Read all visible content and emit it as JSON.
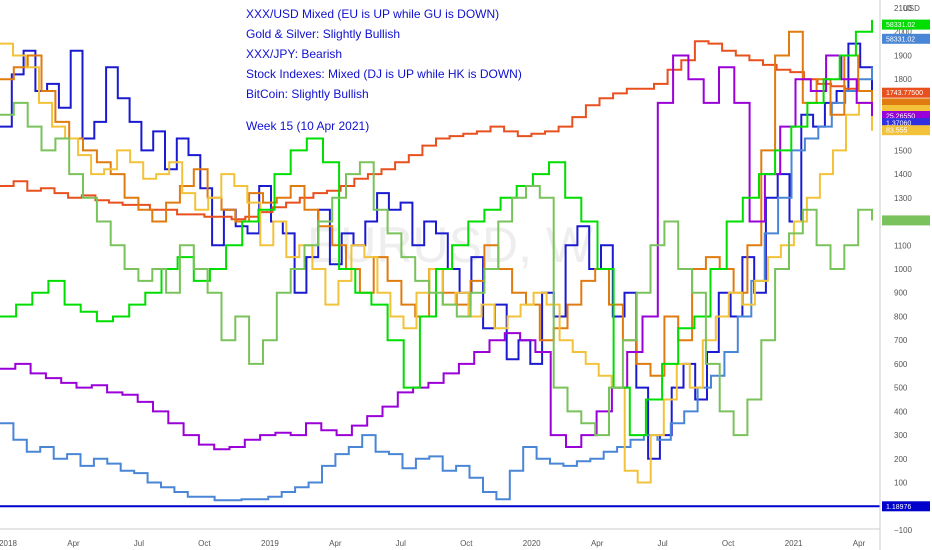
{
  "chart_data": {
    "type": "line",
    "annotations": [
      "XXX/USD Mixed (EU is UP while GU is DOWN)",
      "Gold & Silver: Slightly Bullish",
      "XXX/JPY: Bearish",
      "Stock Indexes:  Mixed (DJ is UP while HK is DOWN)",
      "BitCoin: Slightly Bullish",
      "Week 15 (10 Apr 2021)"
    ],
    "currency_label": "USD",
    "watermark": "EURUSD, W",
    "x_ticks": [
      "2018",
      "Apr",
      "Jul",
      "Oct",
      "2019",
      "Apr",
      "Jul",
      "Oct",
      "2020",
      "Apr",
      "Jul",
      "Oct",
      "2021",
      "Apr"
    ],
    "y_ticks": [
      "2100",
      "2000",
      "1900",
      "1800",
      "1700",
      "1600",
      "1500",
      "1400",
      "1300",
      "1200",
      "1100",
      "1000",
      "900",
      "800",
      "700",
      "600",
      "500",
      "400",
      "300",
      "200",
      "100",
      "0",
      "−100"
    ],
    "ylim": [
      -100,
      2100
    ],
    "grid": false,
    "price_badges": [
      {
        "label": "58331.02",
        "color": "#00dd00",
        "value": 2030
      },
      {
        "label": "58331.02",
        "color": "#4a86d6",
        "value": 1970
      },
      {
        "label": "1743.77500",
        "color": "#e8501e",
        "value": 1743
      },
      {
        "label": "",
        "color": "#e07b10",
        "value": 1698
      },
      {
        "label": "",
        "color": "#f2c33a",
        "value": 1670
      },
      {
        "label": "25.26550",
        "color": "#9a00d8",
        "value": 1645
      },
      {
        "label": "1.37060",
        "color": "#3030e0",
        "value": 1615
      },
      {
        "label": "83.555",
        "color": "#f2c33a",
        "value": 1585
      },
      {
        "label": "",
        "color": "#7ac25b",
        "value": 1205
      },
      {
        "label": "1.18976",
        "color": "#0000cc",
        "value": 0
      }
    ],
    "series": [
      {
        "color": "#1a1ad0",
        "values": [
          1600,
          1820,
          1920,
          1750,
          1780,
          1680,
          1920,
          1550,
          1620,
          1850,
          1720,
          1620,
          1500,
          1580,
          1420,
          1550,
          1480,
          1340,
          1100,
          1250,
          1180,
          1150,
          1350,
          1200,
          1150,
          900,
          1050,
          1250,
          1020,
          1150,
          1100,
          1200,
          1320,
          1250,
          1280,
          1100,
          1200,
          1150,
          1000,
          900,
          1050,
          750,
          850,
          620,
          700,
          600,
          900,
          800,
          1100,
          1180,
          1000,
          1100,
          800,
          900,
          500,
          200,
          300,
          500,
          600,
          450,
          650,
          900,
          800,
          1050,
          900,
          1300,
          1400,
          1200,
          1650,
          1600,
          1700,
          1750,
          1950,
          1850,
          1700
        ]
      },
      {
        "color": "#4a86d6",
        "values": [
          350,
          280,
          230,
          250,
          200,
          220,
          170,
          200,
          180,
          150,
          140,
          100,
          80,
          60,
          40,
          40,
          25,
          25,
          30,
          30,
          40,
          60,
          80,
          100,
          170,
          220,
          250,
          300,
          230,
          220,
          160,
          200,
          210,
          150,
          170,
          120,
          60,
          30,
          150,
          250,
          200,
          180,
          170,
          190,
          200,
          230,
          250,
          280,
          300,
          280,
          350,
          400,
          500,
          550,
          650,
          800,
          950,
          1150,
          1300,
          1500,
          1550,
          1600,
          1700,
          1750,
          1800,
          1850
        ]
      },
      {
        "color": "#e8501e",
        "values": [
          1350,
          1370,
          1330,
          1340,
          1320,
          1300,
          1310,
          1290,
          1280,
          1270,
          1270,
          1250,
          1250,
          1230,
          1230,
          1220,
          1220,
          1210,
          1220,
          1240,
          1260,
          1280,
          1300,
          1320,
          1330,
          1350,
          1380,
          1400,
          1420,
          1450,
          1480,
          1520,
          1550,
          1560,
          1570,
          1580,
          1600,
          1580,
          1560,
          1570,
          1580,
          1600,
          1640,
          1690,
          1720,
          1740,
          1760,
          1760,
          1780,
          1840,
          1880,
          1960,
          1950,
          1920,
          1900,
          1880,
          1860,
          1840,
          1830,
          1800,
          1780,
          1770,
          1760,
          1750,
          1743
        ]
      },
      {
        "color": "#e07b10",
        "values": [
          1800,
          1850,
          1900,
          1750,
          1620,
          1550,
          1500,
          1450,
          1400,
          1300,
          1250,
          1200,
          1280,
          1350,
          1420,
          1300,
          1250,
          1200,
          1320,
          1280,
          1300,
          1350,
          1250,
          1180,
          1100,
          1000,
          900,
          1050,
          950,
          850,
          800,
          1000,
          900,
          850,
          950,
          1100,
          1000,
          900,
          850,
          700,
          750,
          850,
          950,
          1000,
          850,
          700,
          600,
          550,
          800,
          700,
          1000,
          1050,
          1000,
          900,
          1100,
          1500,
          1900,
          2000,
          1700,
          1800,
          1650,
          1900,
          1750,
          1700
        ]
      },
      {
        "color": "#f2c33a",
        "values": [
          1950,
          1900,
          1850,
          1700,
          1600,
          1550,
          1480,
          1400,
          1420,
          1500,
          1450,
          1380,
          1400,
          1450,
          1320,
          1250,
          1300,
          1400,
          1350,
          1280,
          1100,
          1200,
          1050,
          1100,
          1000,
          850,
          950,
          1100,
          1050,
          900,
          800,
          750,
          900,
          1000,
          850,
          900,
          800,
          850,
          750,
          800,
          850,
          900,
          850,
          700,
          650,
          600,
          550,
          500,
          150,
          100,
          300,
          450,
          600,
          500,
          700,
          800,
          900,
          850,
          950,
          1050,
          1100,
          1200,
          1300,
          1400,
          1500,
          1650,
          1700,
          1583
        ]
      },
      {
        "color": "#9a00d8",
        "values": [
          580,
          600,
          560,
          540,
          520,
          500,
          510,
          480,
          470,
          440,
          400,
          350,
          300,
          260,
          240,
          250,
          280,
          300,
          310,
          300,
          350,
          320,
          300,
          340,
          380,
          420,
          480,
          500,
          520,
          560,
          600,
          650,
          700,
          730,
          700,
          650,
          300,
          250,
          300,
          400,
          500,
          650,
          800,
          1700,
          1900,
          1800,
          1700,
          1850,
          1700,
          1200,
          1400,
          1600,
          1800,
          1750,
          1900,
          1800,
          1700,
          1645
        ]
      },
      {
        "color": "#00dd00",
        "values": [
          800,
          850,
          900,
          950,
          850,
          820,
          780,
          800,
          850,
          900,
          1000,
          1050,
          950,
          1000,
          1100,
          1200,
          1250,
          1400,
          1500,
          1550,
          1450,
          1000,
          900,
          850,
          700,
          500,
          800,
          1000,
          1100,
          1200,
          1250,
          1300,
          1350,
          1400,
          1450,
          1300,
          1200,
          1000,
          500,
          300,
          450,
          600,
          750,
          800,
          1000,
          1200,
          1300,
          1400,
          1500,
          1600,
          1700,
          1800,
          1900,
          2000,
          2050
        ]
      },
      {
        "color": "#7ac25b",
        "values": [
          1650,
          1700,
          1600,
          1500,
          1550,
          1400,
          1300,
          1200,
          1100,
          1000,
          950,
          1000,
          900,
          1100,
          1000,
          900,
          700,
          800,
          600,
          700,
          900,
          1000,
          1100,
          1200,
          1300,
          1400,
          1450,
          1250,
          1150,
          1050,
          950,
          900,
          850,
          800,
          900,
          1000,
          1200,
          1300,
          1350,
          1300,
          500,
          400,
          350,
          300,
          500,
          700,
          900,
          1100,
          1200,
          1000,
          900,
          600,
          400,
          300,
          450,
          700,
          1000,
          1150,
          1250,
          1100,
          1000,
          1100,
          1250,
          1205
        ]
      }
    ]
  }
}
